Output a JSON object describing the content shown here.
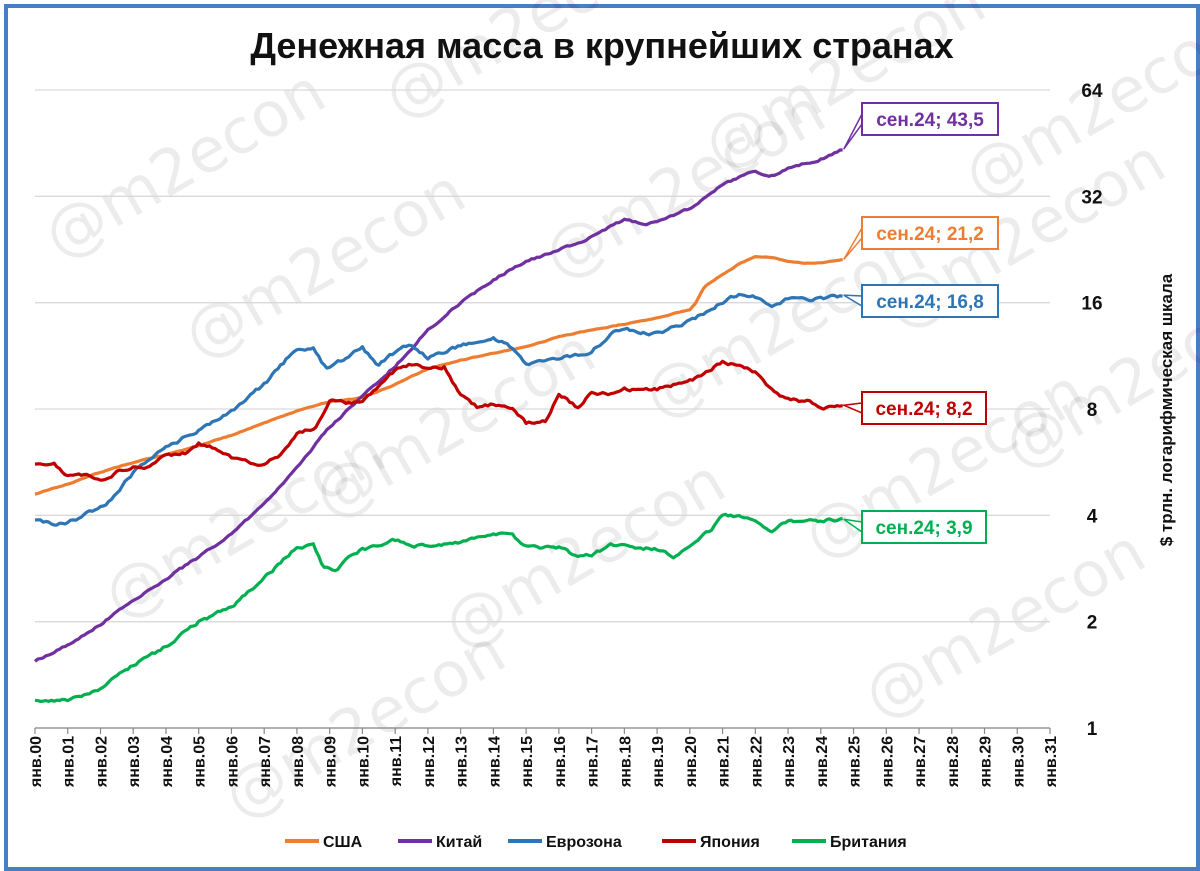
{
  "chart_data": {
    "type": "line",
    "title": "Денежная масса в крупнейших странах",
    "ylabel": "$ трлн. логарифмическая шкала",
    "y_scale": "log2",
    "ylim": [
      1,
      64
    ],
    "yticks": [
      "1",
      "2",
      "4",
      "8",
      "16",
      "32",
      "64"
    ],
    "xlim": [
      2000,
      2031
    ],
    "xticks": [
      "янв.00",
      "янв.01",
      "янв.02",
      "янв.03",
      "янв.04",
      "янв.05",
      "янв.06",
      "янв.07",
      "янв.08",
      "янв.09",
      "янв.10",
      "янв.11",
      "янв.12",
      "янв.13",
      "янв.14",
      "янв.15",
      "янв.16",
      "янв.17",
      "янв.18",
      "янв.19",
      "янв.20",
      "янв.21",
      "янв.22",
      "янв.23",
      "янв.24",
      "янв.25",
      "янв.26",
      "янв.27",
      "янв.28",
      "янв.29",
      "янв.30",
      "янв.31"
    ],
    "watermark": "@m2econ",
    "grid": true,
    "legend": "bottom",
    "series": [
      {
        "name": "США",
        "color": "#ED7D31",
        "noise": 0.004,
        "noise_seed": 1,
        "callout": "сен.24; 21,2",
        "points": [
          [
            2000,
            4.6
          ],
          [
            2001,
            4.9
          ],
          [
            2002,
            5.3
          ],
          [
            2003,
            5.65
          ],
          [
            2004,
            5.95
          ],
          [
            2005,
            6.3
          ],
          [
            2006,
            6.75
          ],
          [
            2007,
            7.3
          ],
          [
            2008,
            7.9
          ],
          [
            2009,
            8.4
          ],
          [
            2010,
            8.6
          ],
          [
            2011,
            9.4
          ],
          [
            2012,
            10.4
          ],
          [
            2013,
            11.0
          ],
          [
            2014,
            11.5
          ],
          [
            2015,
            12.0
          ],
          [
            2016,
            12.8
          ],
          [
            2017,
            13.4
          ],
          [
            2018,
            13.9
          ],
          [
            2019,
            14.5
          ],
          [
            2020,
            15.3
          ],
          [
            2020.17,
            15.9
          ],
          [
            2020.45,
            17.8
          ],
          [
            2021,
            19.2
          ],
          [
            2021.5,
            20.6
          ],
          [
            2022,
            21.6
          ],
          [
            2022.5,
            21.5
          ],
          [
            2023,
            20.9
          ],
          [
            2023.5,
            20.7
          ],
          [
            2024,
            20.8
          ],
          [
            2024.7,
            21.2
          ]
        ]
      },
      {
        "name": "Китай",
        "color": "#7030A0",
        "noise": 0.012,
        "noise_seed": 2,
        "callout": "сен.24; 43,5",
        "points": [
          [
            2000,
            1.55
          ],
          [
            2001,
            1.72
          ],
          [
            2002,
            1.97
          ],
          [
            2003,
            2.3
          ],
          [
            2004,
            2.65
          ],
          [
            2005,
            3.05
          ],
          [
            2006,
            3.55
          ],
          [
            2007,
            4.3
          ],
          [
            2008,
            5.5
          ],
          [
            2009,
            7.1
          ],
          [
            2010,
            8.7
          ],
          [
            2011,
            10.6
          ],
          [
            2012,
            13.4
          ],
          [
            2013,
            16.0
          ],
          [
            2014,
            18.6
          ],
          [
            2015,
            21.0
          ],
          [
            2016,
            22.5
          ],
          [
            2017,
            24.5
          ],
          [
            2018,
            27.5
          ],
          [
            2018.6,
            26.7
          ],
          [
            2019,
            27.0
          ],
          [
            2020,
            29.5
          ],
          [
            2020.6,
            32.5
          ],
          [
            2021,
            34.5
          ],
          [
            2021.8,
            37.5
          ],
          [
            2022,
            37.5
          ],
          [
            2022.6,
            36.5
          ],
          [
            2023,
            38.5
          ],
          [
            2023.6,
            39.8
          ],
          [
            2024,
            40.8
          ],
          [
            2024.7,
            43.5
          ]
        ]
      },
      {
        "name": "Еврозона",
        "color": "#2E75B6",
        "noise": 0.02,
        "noise_seed": 3,
        "callout": "сен.24; 16,8",
        "points": [
          [
            2000,
            3.9
          ],
          [
            2000.6,
            3.75
          ],
          [
            2001,
            3.8
          ],
          [
            2002,
            4.2
          ],
          [
            2002.4,
            4.5
          ],
          [
            2003,
            5.3
          ],
          [
            2004,
            6.2
          ],
          [
            2005,
            7.0
          ],
          [
            2006,
            7.9
          ],
          [
            2007,
            9.4
          ],
          [
            2008,
            11.9
          ],
          [
            2008.5,
            11.8
          ],
          [
            2008.9,
            10.4
          ],
          [
            2009.5,
            11.2
          ],
          [
            2010,
            11.9
          ],
          [
            2010.5,
            10.6
          ],
          [
            2011,
            11.6
          ],
          [
            2011.5,
            12.2
          ],
          [
            2012,
            11.2
          ],
          [
            2012.5,
            11.6
          ],
          [
            2013,
            12.1
          ],
          [
            2014,
            12.6
          ],
          [
            2014.4,
            12.3
          ],
          [
            2015,
            10.8
          ],
          [
            2016,
            11.1
          ],
          [
            2017,
            11.6
          ],
          [
            2017.6,
            13.0
          ],
          [
            2018,
            13.5
          ],
          [
            2019,
            13.1
          ],
          [
            2019.6,
            13.7
          ],
          [
            2020,
            14.2
          ],
          [
            2021,
            16.1
          ],
          [
            2021.6,
            17.0
          ],
          [
            2022,
            16.6
          ],
          [
            2022.5,
            15.4
          ],
          [
            2023,
            16.4
          ],
          [
            2024,
            16.4
          ],
          [
            2024.7,
            16.8
          ]
        ]
      },
      {
        "name": "Япония",
        "color": "#C00000",
        "noise": 0.018,
        "noise_seed": 4,
        "callout": "сен.24; 8,2",
        "points": [
          [
            2000,
            5.6
          ],
          [
            2000.6,
            5.6
          ],
          [
            2001,
            5.15
          ],
          [
            2001.6,
            5.2
          ],
          [
            2002,
            5.0
          ],
          [
            2002.6,
            5.35
          ],
          [
            2003,
            5.45
          ],
          [
            2003.5,
            5.5
          ],
          [
            2004,
            5.9
          ],
          [
            2004.6,
            6.0
          ],
          [
            2005,
            6.4
          ],
          [
            2005.6,
            6.15
          ],
          [
            2006,
            5.85
          ],
          [
            2006.6,
            5.65
          ],
          [
            2007,
            5.55
          ],
          [
            2007.6,
            6.05
          ],
          [
            2008,
            6.8
          ],
          [
            2008.6,
            7.1
          ],
          [
            2009,
            8.5
          ],
          [
            2009.6,
            8.3
          ],
          [
            2010,
            8.45
          ],
          [
            2010.6,
            9.5
          ],
          [
            2011,
            10.3
          ],
          [
            2011.6,
            10.8
          ],
          [
            2012,
            10.4
          ],
          [
            2012.5,
            10.5
          ],
          [
            2013,
            8.7
          ],
          [
            2013.5,
            8.1
          ],
          [
            2014,
            8.25
          ],
          [
            2014.6,
            8.1
          ],
          [
            2015,
            7.3
          ],
          [
            2015.6,
            7.4
          ],
          [
            2016,
            8.9
          ],
          [
            2016.6,
            8.0
          ],
          [
            2017,
            8.9
          ],
          [
            2017.6,
            8.8
          ],
          [
            2018,
            9.1
          ],
          [
            2018.6,
            9.0
          ],
          [
            2019,
            9.1
          ],
          [
            2019.6,
            9.4
          ],
          [
            2020,
            9.6
          ],
          [
            2020.6,
            10.3
          ],
          [
            2021,
            10.9
          ],
          [
            2021.6,
            10.5
          ],
          [
            2022,
            10.2
          ],
          [
            2022.6,
            8.9
          ],
          [
            2023,
            8.5
          ],
          [
            2023.6,
            8.4
          ],
          [
            2024,
            8.0
          ],
          [
            2024.7,
            8.2
          ]
        ]
      },
      {
        "name": "Британия",
        "color": "#00B050",
        "noise": 0.018,
        "noise_seed": 5,
        "callout": "сен.24; 3,9",
        "points": [
          [
            2000,
            1.2
          ],
          [
            2001,
            1.2
          ],
          [
            2002,
            1.3
          ],
          [
            2003,
            1.5
          ],
          [
            2004,
            1.7
          ],
          [
            2005,
            2.0
          ],
          [
            2006,
            2.2
          ],
          [
            2007,
            2.65
          ],
          [
            2008,
            3.25
          ],
          [
            2008.5,
            3.3
          ],
          [
            2008.8,
            2.85
          ],
          [
            2009.2,
            2.8
          ],
          [
            2009.6,
            3.05
          ],
          [
            2010,
            3.2
          ],
          [
            2011,
            3.4
          ],
          [
            2011.6,
            3.3
          ],
          [
            2012,
            3.3
          ],
          [
            2013,
            3.35
          ],
          [
            2014,
            3.55
          ],
          [
            2014.6,
            3.5
          ],
          [
            2015,
            3.25
          ],
          [
            2016,
            3.25
          ],
          [
            2016.6,
            3.05
          ],
          [
            2017,
            3.1
          ],
          [
            2017.6,
            3.3
          ],
          [
            2018,
            3.3
          ],
          [
            2019,
            3.2
          ],
          [
            2019.5,
            3.05
          ],
          [
            2020,
            3.3
          ],
          [
            2020.6,
            3.6
          ],
          [
            2021,
            4.0
          ],
          [
            2021.6,
            3.95
          ],
          [
            2022,
            3.9
          ],
          [
            2022.5,
            3.6
          ],
          [
            2023,
            3.85
          ],
          [
            2024,
            3.85
          ],
          [
            2024.7,
            3.9
          ]
        ]
      }
    ]
  }
}
